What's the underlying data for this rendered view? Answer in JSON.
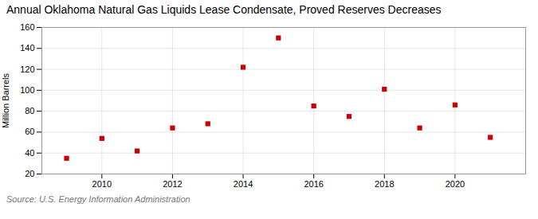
{
  "chart_data": {
    "type": "scatter",
    "title": "Annual Oklahoma Natural Gas Liquids Lease Condensate, Proved Reserves Decreases",
    "ylabel": "Million Barrels",
    "source": "Source: U.S. Energy Information Administration",
    "x": [
      2009,
      2010,
      2011,
      2012,
      2013,
      2014,
      2015,
      2016,
      2017,
      2018,
      2019,
      2020,
      2021
    ],
    "values": [
      35,
      54,
      42,
      64,
      68,
      122,
      150,
      85,
      75,
      101,
      64,
      86,
      55
    ],
    "color": "#cc0000",
    "marker": "square",
    "xlim": [
      2008.3,
      2022.0
    ],
    "xticks": [
      2010,
      2012,
      2014,
      2016,
      2018,
      2020
    ],
    "ylim": [
      20,
      160
    ],
    "yticks": [
      20,
      40,
      60,
      80,
      100,
      120,
      140,
      160
    ],
    "grid": true
  }
}
